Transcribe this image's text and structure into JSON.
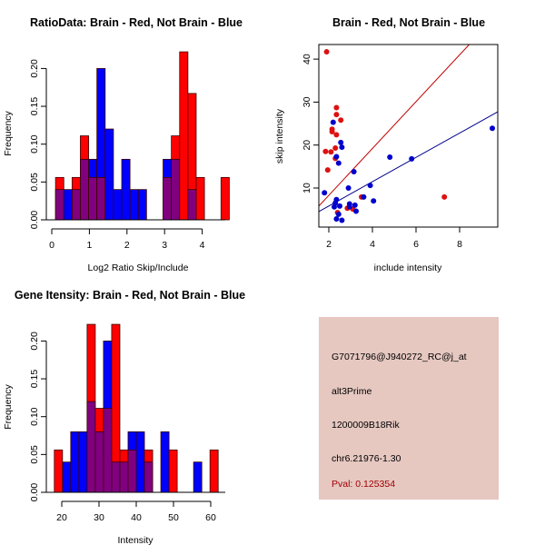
{
  "chart_data": [
    {
      "type": "bar",
      "subtype": "overlaid-histogram",
      "title": "RatioData: Brain - Red, Not Brain - Blue",
      "xlabel": "Log2 Ratio Skip/Include",
      "ylabel": "Frequency",
      "xlim": [
        0,
        4.5
      ],
      "ylim": [
        0,
        0.22
      ],
      "xticks": [
        "0",
        "1",
        "2",
        "3",
        "4"
      ],
      "xtick_values": [
        0,
        1,
        2,
        3,
        4
      ],
      "yticks": [
        "0.00",
        "0.05",
        "0.10",
        "0.15",
        "0.20"
      ],
      "ytick_values": [
        0,
        0.05,
        0.1,
        0.15,
        0.2
      ],
      "bin_start": 0.1,
      "bin_width": 0.22,
      "series": [
        {
          "name": "Brain",
          "color": "#ff0000",
          "values": [
            0.056,
            0,
            0.056,
            0.111,
            0.056,
            0.056,
            0,
            0,
            0,
            0,
            0,
            0,
            0,
            0.056,
            0.111,
            0.222,
            0.167,
            0.056,
            0,
            0,
            0.056
          ]
        },
        {
          "name": "Not Brain",
          "color": "#0000ff",
          "values": [
            0.04,
            0.04,
            0.04,
            0.08,
            0.08,
            0.2,
            0.12,
            0.04,
            0.08,
            0.04,
            0.04,
            0,
            0,
            0.08,
            0.08,
            0,
            0.04,
            0,
            0,
            0,
            0
          ]
        }
      ],
      "overlap_color": "#800080"
    },
    {
      "type": "scatter",
      "title": "Brain - Red, Not Brain - Blue",
      "xlabel": "include intensity",
      "ylabel": "skip intensity",
      "xlim": [
        1.6,
        9.8
      ],
      "ylim": [
        0.5,
        43.5
      ],
      "xticks": [
        "2",
        "4",
        "6",
        "8"
      ],
      "xtick_values": [
        2,
        4,
        6,
        8
      ],
      "yticks": [
        "10",
        "20",
        "30",
        "40"
      ],
      "ytick_values": [
        10,
        20,
        30,
        40
      ],
      "series": [
        {
          "name": "Brain",
          "color": "#dd1111",
          "points": [
            [
              1.9,
              41.7
            ],
            [
              2.35,
              28.7
            ],
            [
              2.35,
              27.1
            ],
            [
              2.55,
              25.8
            ],
            [
              2.15,
              23.7
            ],
            [
              2.15,
              23.1
            ],
            [
              2.35,
              22.4
            ],
            [
              1.85,
              18.5
            ],
            [
              2.1,
              18.4
            ],
            [
              2.3,
              19.3
            ],
            [
              2.3,
              16.9
            ],
            [
              1.95,
              14.2
            ],
            [
              2.4,
              4.3
            ],
            [
              2.85,
              5.3
            ],
            [
              3.1,
              5.1
            ],
            [
              3.5,
              7.9
            ],
            [
              7.3,
              7.9
            ]
          ],
          "fit_line": {
            "intercept": -2.6,
            "slope": 5.45
          }
        },
        {
          "name": "Not Brain",
          "color": "#0000cc",
          "points": [
            [
              2.2,
              25.3
            ],
            [
              2.55,
              20.6
            ],
            [
              2.6,
              19.5
            ],
            [
              2.35,
              17.3
            ],
            [
              2.45,
              15.8
            ],
            [
              1.8,
              8.9
            ],
            [
              3.15,
              13.8
            ],
            [
              4.8,
              17.2
            ],
            [
              5.8,
              16.8
            ],
            [
              9.5,
              23.9
            ],
            [
              2.9,
              10.0
            ],
            [
              3.9,
              10.6
            ],
            [
              2.35,
              7.3
            ],
            [
              2.3,
              6.5
            ],
            [
              2.25,
              5.6
            ],
            [
              2.5,
              5.8
            ],
            [
              2.95,
              6.3
            ],
            [
              2.95,
              5.6
            ],
            [
              3.2,
              6.0
            ],
            [
              3.25,
              4.6
            ],
            [
              3.6,
              7.9
            ],
            [
              4.05,
              7.0
            ],
            [
              2.35,
              2.8
            ],
            [
              2.6,
              2.5
            ],
            [
              2.45,
              3.9
            ]
          ],
          "fit_line": {
            "intercept": 0.15,
            "slope": 2.83
          }
        }
      ]
    },
    {
      "type": "bar",
      "subtype": "overlaid-histogram",
      "title": "Gene Itensity: Brain - Red, Not Brain - Blue",
      "xlabel": "Intensity",
      "ylabel": "Frequency",
      "xlim": [
        17,
        63
      ],
      "ylim": [
        0,
        0.22
      ],
      "xticks": [
        "20",
        "30",
        "40",
        "50",
        "60"
      ],
      "xtick_values": [
        20,
        30,
        40,
        50,
        60
      ],
      "yticks": [
        "0.00",
        "0.05",
        "0.10",
        "0.15",
        "0.20"
      ],
      "ytick_values": [
        0,
        0.05,
        0.1,
        0.15,
        0.2
      ],
      "bin_start": 18,
      "bin_width": 2.2,
      "series": [
        {
          "name": "Brain",
          "color": "#ff0000",
          "values": [
            0.056,
            0,
            0,
            0,
            0.222,
            0.111,
            0.111,
            0.222,
            0.056,
            0.056,
            0,
            0.056,
            0,
            0,
            0.056,
            0,
            0,
            0,
            0,
            0.056
          ]
        },
        {
          "name": "Not Brain",
          "color": "#0000ff",
          "values": [
            0,
            0.04,
            0.08,
            0.08,
            0.12,
            0.08,
            0.2,
            0.04,
            0.04,
            0.08,
            0.08,
            0.04,
            0,
            0.08,
            0,
            0,
            0,
            0.04,
            0,
            0
          ]
        }
      ],
      "overlap_color": "#800080"
    }
  ],
  "info": {
    "probe_id": "G7071796@J940272_RC@j_at",
    "event_type": "alt3Prime",
    "gene": "1200009B18Rik",
    "location": "chr6.21976-1.30",
    "pval": "Pval: 0.125354",
    "background_color": "#e6c8c1",
    "pval_color": "#a00000"
  }
}
